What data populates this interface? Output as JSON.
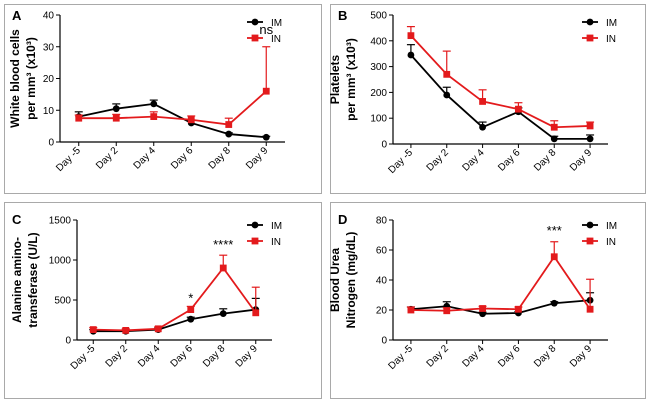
{
  "chart_data": [
    {
      "panel": "A",
      "type": "line",
      "ylabel_lines": [
        "White blood cells",
        "per mm³ (x10³)"
      ],
      "categories": [
        "Day -5",
        "Day 2",
        "Day 4",
        "Day 6",
        "Day 8",
        "Day 9"
      ],
      "ylim": [
        0,
        40
      ],
      "yticks": [
        "0",
        "10",
        "20",
        "30",
        "40"
      ],
      "ytick_values": [
        0,
        10,
        20,
        30,
        40
      ],
      "series": [
        {
          "name": "IM",
          "color": "#000000",
          "marker": "circle",
          "values": [
            8.0,
            10.5,
            12.0,
            6.0,
            2.5,
            1.5
          ],
          "errors": [
            1.5,
            1.5,
            1.2,
            0.8,
            0.4,
            0.3
          ]
        },
        {
          "name": "IN",
          "color": "#e31a1c",
          "marker": "square",
          "values": [
            7.5,
            7.5,
            8.0,
            7.0,
            5.5,
            16.0
          ],
          "errors": [
            1.0,
            1.2,
            1.5,
            1.2,
            2.0,
            14.0
          ]
        }
      ],
      "annotations": [
        {
          "text": "ns",
          "index": 5,
          "value": 34
        }
      ]
    },
    {
      "panel": "B",
      "type": "line",
      "ylabel_lines": [
        "Platelets",
        "per mm³ (x10³)"
      ],
      "categories": [
        "Day -5",
        "Day 2",
        "Day 4",
        "Day 6",
        "Day 8",
        "Day 9"
      ],
      "ylim": [
        0,
        500
      ],
      "yticks": [
        "0",
        "100",
        "200",
        "300",
        "400",
        "500"
      ],
      "ytick_values": [
        0,
        100,
        200,
        300,
        400,
        500
      ],
      "series": [
        {
          "name": "IM",
          "color": "#000000",
          "marker": "circle",
          "values": [
            345,
            190,
            65,
            125,
            20,
            20
          ],
          "errors": [
            40,
            30,
            20,
            15,
            10,
            15
          ]
        },
        {
          "name": "IN",
          "color": "#e31a1c",
          "marker": "square",
          "values": [
            420,
            270,
            165,
            135,
            65,
            70
          ],
          "errors": [
            35,
            90,
            45,
            25,
            25,
            15
          ]
        }
      ],
      "annotations": []
    },
    {
      "panel": "C",
      "type": "line",
      "ylabel_lines": [
        "Alanine amino-",
        "transferase (U/L)"
      ],
      "categories": [
        "Day -5",
        "Day 2",
        "Day 4",
        "Day 6",
        "Day 8",
        "Day 9"
      ],
      "ylim": [
        0,
        1500
      ],
      "yticks": [
        "0",
        "500",
        "1000",
        "1500"
      ],
      "ytick_values": [
        0,
        500,
        1000,
        1500
      ],
      "series": [
        {
          "name": "IM",
          "color": "#000000",
          "marker": "circle",
          "values": [
            110,
            110,
            130,
            260,
            330,
            380
          ],
          "errors": [
            20,
            15,
            20,
            25,
            60,
            140
          ]
        },
        {
          "name": "IN",
          "color": "#e31a1c",
          "marker": "square",
          "values": [
            130,
            120,
            140,
            380,
            900,
            340
          ],
          "errors": [
            25,
            20,
            25,
            40,
            160,
            320
          ]
        }
      ],
      "annotations": [
        {
          "text": "*",
          "index": 3,
          "value": 470
        },
        {
          "text": "****",
          "index": 4,
          "value": 1140
        }
      ]
    },
    {
      "panel": "D",
      "type": "line",
      "ylabel_lines": [
        "Blood Urea",
        "Nitrogen (mg/dL)"
      ],
      "categories": [
        "Day -5",
        "Day 2",
        "Day 4",
        "Day 6",
        "Day 8",
        "Day 9"
      ],
      "ylim": [
        0,
        80
      ],
      "yticks": [
        "0",
        "20",
        "40",
        "60",
        "80"
      ],
      "ytick_values": [
        0,
        20,
        40,
        60,
        80
      ],
      "series": [
        {
          "name": "IM",
          "color": "#000000",
          "marker": "circle",
          "values": [
            20.5,
            22.5,
            17.5,
            18.0,
            24.5,
            26.5
          ],
          "errors": [
            1.5,
            3.0,
            1.0,
            1.0,
            1.0,
            5.0
          ]
        },
        {
          "name": "IN",
          "color": "#e31a1c",
          "marker": "square",
          "values": [
            20.0,
            19.5,
            21.0,
            20.5,
            55.5,
            20.5
          ],
          "errors": [
            2.0,
            2.0,
            1.5,
            1.5,
            10.0,
            20.0
          ]
        }
      ],
      "annotations": [
        {
          "text": "***",
          "index": 4,
          "value": 70
        }
      ]
    }
  ]
}
